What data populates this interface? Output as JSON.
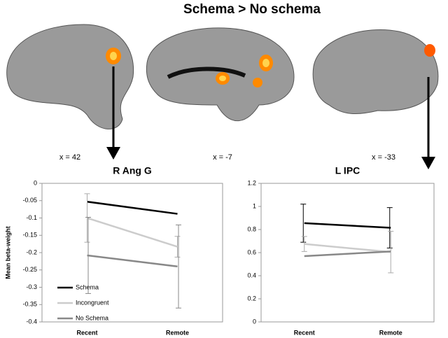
{
  "figure": {
    "title": "Schema > No schema",
    "slices": [
      "x = 42",
      "x = -7",
      "x = -33"
    ]
  },
  "chart_data": [
    {
      "type": "line",
      "title": "R Ang G",
      "y_label": "Mean beta-weight",
      "categories": [
        "Recent",
        "Remote"
      ],
      "series": [
        {
          "name": "Schema",
          "color": "#000000",
          "values": [
            -0.053,
            -0.088
          ]
        },
        {
          "name": "Incongruent",
          "color": "#cccccc",
          "values": [
            -0.1,
            -0.183
          ],
          "errors": [
            0.07,
            0.03
          ]
        },
        {
          "name": "No Schema",
          "color": "#888888",
          "values": [
            -0.208,
            -0.24
          ],
          "errors": [
            0.11,
            0.12
          ]
        }
      ],
      "ylim": [
        -0.4,
        0
      ],
      "yticks": [
        -0.4,
        -0.35,
        -0.3,
        -0.25,
        -0.2,
        -0.15,
        -0.1,
        -0.05,
        0
      ],
      "legend": true
    },
    {
      "type": "line",
      "title": "L IPC",
      "categories": [
        "Recent",
        "Remote"
      ],
      "series": [
        {
          "color": "#000000",
          "values": [
            0.855,
            0.815
          ],
          "errors": [
            0.165,
            0.175
          ]
        },
        {
          "color": "#cccccc",
          "values": [
            0.675,
            0.605
          ],
          "errors": [
            0.065,
            0.18
          ]
        },
        {
          "color": "#888888",
          "values": [
            0.57,
            0.61
          ]
        }
      ],
      "ylim": [
        0,
        1.2
      ],
      "yticks": [
        0,
        0.2,
        0.4,
        0.6,
        0.8,
        1,
        1.2
      ],
      "legend": false
    }
  ]
}
